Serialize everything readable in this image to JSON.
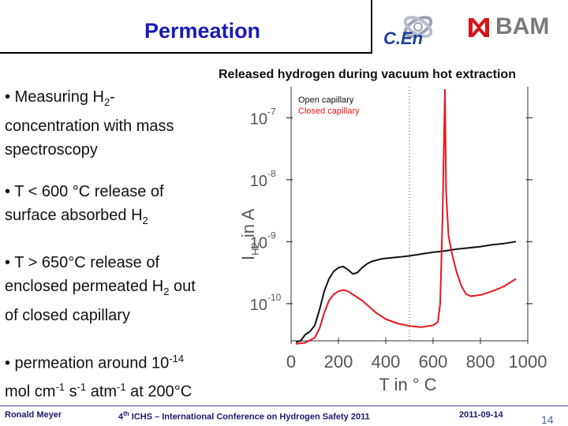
{
  "header": {
    "title": "Permeation",
    "logo_left": "C.En",
    "logo_right": "BAM"
  },
  "bullets": [
    {
      "lines": [
        "• Measuring H",
        "2",
        "-",
        "concentration with mass",
        "spectroscopy"
      ]
    },
    {
      "lines": [
        "• T < 600 °C release of",
        "surface absorbed H",
        "2"
      ]
    },
    {
      "lines": [
        "• T > 650°C release of",
        "enclosed permeated H",
        "2",
        " out",
        "of closed capillary"
      ]
    },
    {
      "lines": [
        "• permeation around 10",
        "-14",
        "mol cm",
        "-1",
        " s",
        "-1",
        " atm",
        "-1",
        "  at 200°C"
      ]
    }
  ],
  "colors": {
    "title_blue": "#1a1ab8",
    "series_open": "#111111",
    "series_closed": "#e8161c",
    "footer_text": "#1a1a6e",
    "page_number": "#4a66a8"
  },
  "chart_data": {
    "type": "line",
    "title": "Released hydrogen during vacuum hot extraction",
    "xlabel": "T in ° C",
    "ylabel": "I",
    "ylabel_sub": "H2",
    "ylabel_unit": "in A",
    "xlim": [
      0,
      1000
    ],
    "ylim_log10": [
      -10.6,
      -6.5
    ],
    "y_log_scale": true,
    "x_ticks": [
      0,
      200,
      400,
      600,
      800,
      1000
    ],
    "y_ticks": [
      {
        "base": "10",
        "exp": "-7",
        "value": -7
      },
      {
        "base": "10",
        "exp": "-8",
        "value": -8
      },
      {
        "base": "10",
        "exp": "-9",
        "value": -9
      },
      {
        "base": "10",
        "exp": "-10",
        "value": -10
      }
    ],
    "vertical_dotted_line_x": 500,
    "legend_position": "top-left",
    "series": [
      {
        "name": "Open capillary",
        "color": "#111111",
        "points": [
          [
            20,
            -10.62
          ],
          [
            40,
            -10.6
          ],
          [
            60,
            -10.5
          ],
          [
            80,
            -10.45
          ],
          [
            100,
            -10.35
          ],
          [
            120,
            -10.1
          ],
          [
            140,
            -9.8
          ],
          [
            160,
            -9.6
          ],
          [
            180,
            -9.48
          ],
          [
            200,
            -9.42
          ],
          [
            220,
            -9.4
          ],
          [
            240,
            -9.45
          ],
          [
            260,
            -9.52
          ],
          [
            280,
            -9.5
          ],
          [
            300,
            -9.42
          ],
          [
            320,
            -9.36
          ],
          [
            340,
            -9.32
          ],
          [
            360,
            -9.3
          ],
          [
            380,
            -9.28
          ],
          [
            400,
            -9.27
          ],
          [
            450,
            -9.25
          ],
          [
            500,
            -9.23
          ],
          [
            550,
            -9.2
          ],
          [
            600,
            -9.17
          ],
          [
            650,
            -9.15
          ],
          [
            700,
            -9.12
          ],
          [
            750,
            -9.1
          ],
          [
            800,
            -9.08
          ],
          [
            850,
            -9.05
          ],
          [
            900,
            -9.03
          ],
          [
            950,
            -9.0
          ]
        ]
      },
      {
        "name": "Closed capillary",
        "color": "#e8161c",
        "points": [
          [
            20,
            -10.65
          ],
          [
            60,
            -10.63
          ],
          [
            100,
            -10.55
          ],
          [
            120,
            -10.4
          ],
          [
            140,
            -10.15
          ],
          [
            160,
            -9.95
          ],
          [
            180,
            -9.85
          ],
          [
            200,
            -9.8
          ],
          [
            220,
            -9.78
          ],
          [
            240,
            -9.8
          ],
          [
            260,
            -9.85
          ],
          [
            280,
            -9.9
          ],
          [
            300,
            -9.95
          ],
          [
            330,
            -10.05
          ],
          [
            360,
            -10.15
          ],
          [
            400,
            -10.25
          ],
          [
            450,
            -10.32
          ],
          [
            500,
            -10.36
          ],
          [
            550,
            -10.38
          ],
          [
            600,
            -10.35
          ],
          [
            620,
            -10.3
          ],
          [
            630,
            -10.0
          ],
          [
            640,
            -8.6
          ],
          [
            650,
            -6.55
          ],
          [
            655,
            -8.2
          ],
          [
            665,
            -8.9
          ],
          [
            680,
            -9.2
          ],
          [
            700,
            -9.5
          ],
          [
            720,
            -9.72
          ],
          [
            740,
            -9.85
          ],
          [
            760,
            -9.88
          ],
          [
            800,
            -9.86
          ],
          [
            850,
            -9.8
          ],
          [
            900,
            -9.72
          ],
          [
            950,
            -9.6
          ]
        ]
      }
    ]
  },
  "footer": {
    "author": "Ronald Meyer",
    "conference_prefix": "4",
    "conference_sup": "th",
    "conference_rest": " ICHS – International Conference on Hydrogen Safety 2011",
    "date": "2011-09-14",
    "page": "14"
  }
}
